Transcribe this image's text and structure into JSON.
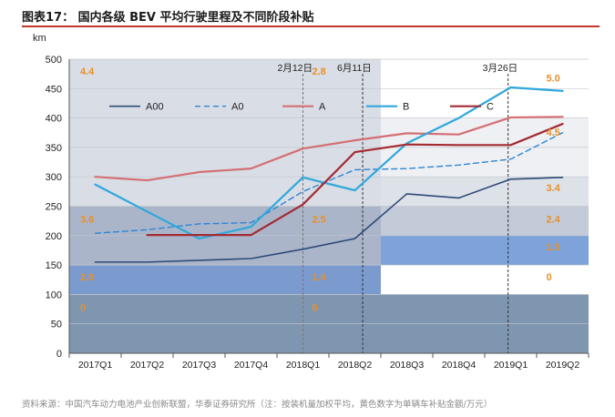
{
  "title": "图表17：  国内各级 BEV 平均行驶里程及不同阶段补贴",
  "source": "资料来源：中国汽车动力电池产业创新联盟，华泰证券研究所（注：按装机量加权平均，黄色数字为单辆车补贴金额/万元）",
  "chart_data": {
    "type": "line",
    "ylabel": "km",
    "ylim": [
      0,
      500
    ],
    "yticks": [
      0,
      50,
      100,
      150,
      200,
      250,
      300,
      350,
      400,
      450,
      500
    ],
    "categories": [
      "2017Q1",
      "2017Q2",
      "2017Q3",
      "2017Q4",
      "2018Q1",
      "2018Q2",
      "2018Q3",
      "2018Q4",
      "2019Q1",
      "2019Q2"
    ],
    "series": [
      {
        "name": "A00",
        "color": "#2e4a78",
        "dash": false,
        "width": 1.6,
        "values": [
          155,
          155,
          158,
          161,
          177,
          195,
          271,
          264,
          296,
          299
        ]
      },
      {
        "name": "A0",
        "color": "#2e86d6",
        "dash": true,
        "width": 1.4,
        "values": [
          204,
          210,
          220,
          222,
          275,
          312,
          314,
          320,
          330,
          375
        ]
      },
      {
        "name": "A",
        "color": "#d46f74",
        "dash": false,
        "width": 2.2,
        "values": [
          300,
          294,
          308,
          314,
          348,
          362,
          374,
          372,
          401,
          402
        ]
      },
      {
        "name": "B",
        "color": "#2fa8dc",
        "dash": false,
        "width": 2.2,
        "values": [
          287,
          241,
          195,
          215,
          299,
          277,
          357,
          400,
          452,
          446
        ]
      },
      {
        "name": "C",
        "color": "#a52a32",
        "dash": false,
        "width": 2.2,
        "values": [
          null,
          201,
          201,
          201,
          253,
          342,
          355,
          354,
          354,
          390
        ]
      }
    ],
    "subsidy_bands": [
      {
        "range": [
          0,
          100
        ],
        "from": "2017Q1",
        "to": "2019Q2",
        "color": "#7f96b0"
      },
      {
        "range": [
          100,
          150
        ],
        "from": "2017Q1",
        "to": "2018Q2",
        "color": "#7b9ace"
      },
      {
        "range": [
          150,
          250
        ],
        "from": "2017Q1",
        "to": "2018Q2",
        "color": "#aab5ca"
      },
      {
        "range": [
          250,
          500
        ],
        "from": "2017Q1",
        "to": "2018Q2",
        "color": "#d9dde5"
      },
      {
        "range": [
          150,
          200
        ],
        "from": "2018Q3",
        "to": "2019Q2",
        "color": "#7ea3da"
      },
      {
        "range": [
          200,
          250
        ],
        "from": "2018Q3",
        "to": "2019Q2",
        "color": "#c3cad8"
      },
      {
        "range": [
          250,
          300
        ],
        "from": "2018Q3",
        "to": "2019Q2",
        "color": "#dde1e8"
      },
      {
        "range": [
          300,
          400
        ],
        "from": "2018Q3",
        "to": "2019Q2",
        "color": "#eef0f3"
      }
    ],
    "vlines": [
      {
        "label": "2月12日",
        "at": 4.5,
        "color": "#777777"
      },
      {
        "label": "6月11日",
        "at": 5.65,
        "color": "#333333"
      },
      {
        "label": "3月26日",
        "at": 8.45,
        "color": "#333333"
      }
    ],
    "subsidy_labels": [
      {
        "text": "4.4",
        "period": "2017",
        "y": 480
      },
      {
        "text": "3.6",
        "period": "2017",
        "y": 228
      },
      {
        "text": "2.0",
        "period": "2017",
        "y": 130
      },
      {
        "text": "0",
        "period": "2017",
        "y": 78
      },
      {
        "text": "2.8",
        "period": "2018H1",
        "y": 480
      },
      {
        "text": "2.5",
        "period": "2018H1",
        "y": 228
      },
      {
        "text": "1.4",
        "period": "2018H1",
        "y": 130
      },
      {
        "text": "0",
        "period": "2018H1",
        "y": 78
      },
      {
        "text": "5.0",
        "period": "2018H2-2019",
        "y": 468
      },
      {
        "text": "4.5",
        "period": "2018H2-2019",
        "y": 376
      },
      {
        "text": "3.4",
        "period": "2018H2-2019",
        "y": 282
      },
      {
        "text": "2.4",
        "period": "2018H2-2019",
        "y": 228
      },
      {
        "text": "1.5",
        "period": "2018H2-2019",
        "y": 181
      },
      {
        "text": "0",
        "period": "2018H2-2019",
        "y": 130
      }
    ],
    "label_color": "#e8902a"
  }
}
